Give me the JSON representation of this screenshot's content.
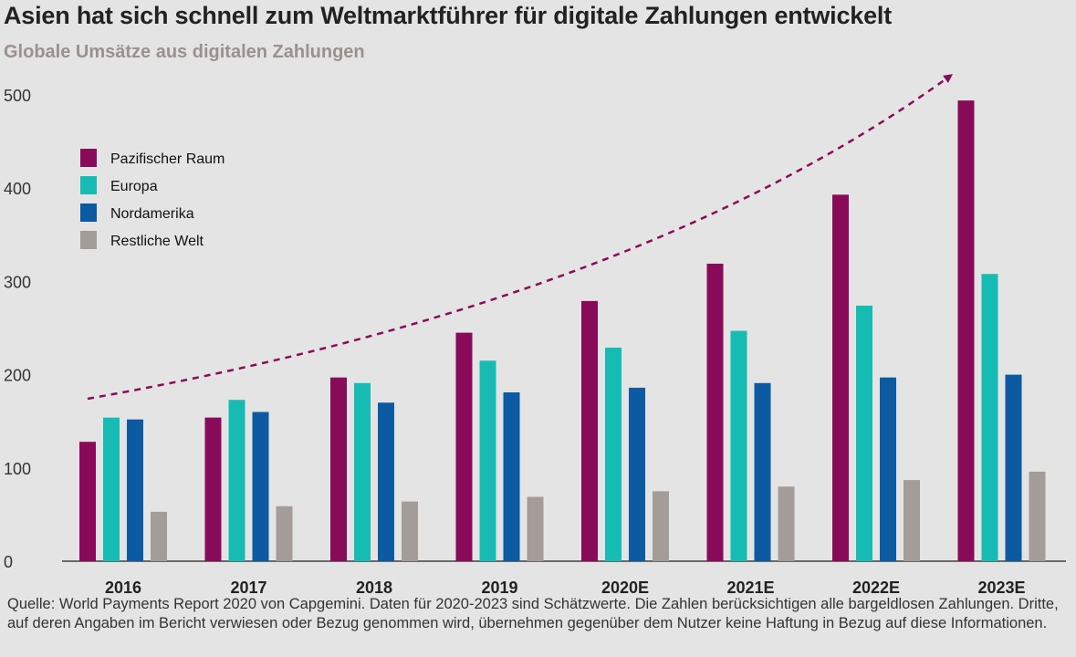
{
  "title": "Asien hat sich schnell zum Weltmarktführer für digitale Zahlungen entwickelt",
  "subtitle": "Globale Umsätze aus digitalen Zahlungen",
  "footnote": "Quelle: World Payments Report 2020 von Capgemini. Daten für 2020-2023 sind Schätzwerte. Die Zahlen berücksichtigen alle bargeldlosen Zahlungen. Dritte, auf deren Angaben im Bericht verwiesen oder Bezug genommen wird, übernehmen gegenüber dem Nutzer keine Haftung in Bezug auf diese Informationen.",
  "chart_data": {
    "type": "bar",
    "title": "Asien hat sich schnell zum Weltmarktführer für digitale Zahlungen entwickelt",
    "subtitle": "Globale Umsätze aus digitalen Zahlungen",
    "categories": [
      "2016",
      "2017",
      "2018",
      "2019",
      "2020E",
      "2021E",
      "2022E",
      "2023E"
    ],
    "series": [
      {
        "name": "Pazifischer Raum",
        "color": "#8a0a5a",
        "values": [
          128,
          154,
          197,
          245,
          279,
          319,
          393,
          494
        ]
      },
      {
        "name": "Europa",
        "color": "#16bcb4",
        "values": [
          154,
          173,
          191,
          215,
          229,
          247,
          274,
          308
        ]
      },
      {
        "name": "Nordamerika",
        "color": "#0b5aa2",
        "values": [
          152,
          160,
          170,
          181,
          186,
          191,
          197,
          200
        ]
      },
      {
        "name": "Restliche Welt",
        "color": "#a49c98",
        "values": [
          53,
          59,
          64,
          69,
          75,
          80,
          87,
          96
        ]
      }
    ],
    "ylim": [
      0,
      500
    ],
    "yticks": [
      0,
      100,
      200,
      300,
      400,
      500
    ],
    "grid": false,
    "legend_position": "top-left",
    "annotation": {
      "type": "dashed-arrow",
      "color": "#8a0a5a",
      "description_direction": "upward trend"
    }
  }
}
